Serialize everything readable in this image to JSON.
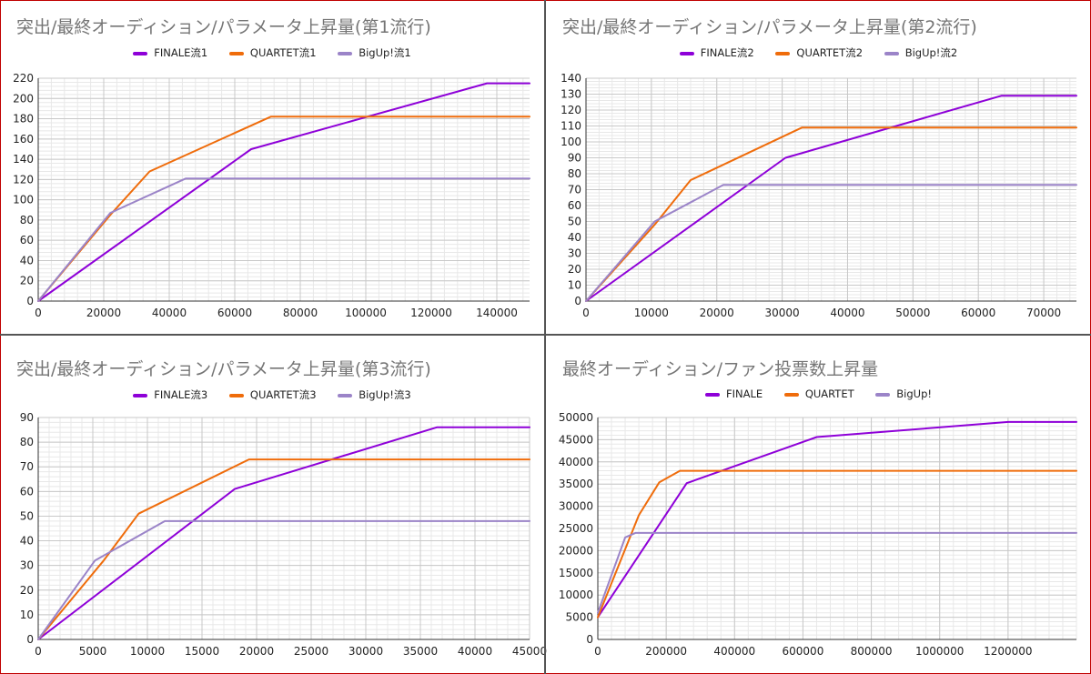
{
  "colors": {
    "finale": "#8e00d8",
    "quartet": "#ef6c0b",
    "bigup": "#9b84c8",
    "frame": "#c00000"
  },
  "chart_data": [
    {
      "type": "line",
      "title": "突出/最終オーディション/パラメータ上昇量(第1流行)",
      "xlim": [
        0,
        150000
      ],
      "ylim": [
        0,
        220
      ],
      "xticks": [
        0,
        20000,
        40000,
        60000,
        80000,
        100000,
        120000,
        140000
      ],
      "yticks": [
        0,
        20,
        40,
        60,
        80,
        100,
        120,
        140,
        160,
        180,
        200,
        220
      ],
      "grid": true,
      "legend": "top",
      "series": [
        {
          "name": "FINALE流1",
          "color": "finale",
          "points": [
            [
              0,
              0
            ],
            [
              65000,
              150
            ],
            [
              137000,
              215
            ],
            [
              150000,
              215
            ]
          ]
        },
        {
          "name": "QUARTET流1",
          "color": "quartet",
          "points": [
            [
              0,
              0
            ],
            [
              22000,
              85
            ],
            [
              34000,
              128
            ],
            [
              71000,
              182
            ],
            [
              150000,
              182
            ]
          ]
        },
        {
          "name": "BigUp!流1",
          "color": "bigup",
          "points": [
            [
              0,
              0
            ],
            [
              22000,
              87
            ],
            [
              45000,
              121
            ],
            [
              150000,
              121
            ]
          ]
        }
      ]
    },
    {
      "type": "line",
      "title": "突出/最終オーディション/パラメータ上昇量(第2流行)",
      "xlim": [
        0,
        75000
      ],
      "ylim": [
        0,
        140
      ],
      "xticks": [
        0,
        10000,
        20000,
        30000,
        40000,
        50000,
        60000,
        70000
      ],
      "yticks": [
        0,
        10,
        20,
        30,
        40,
        50,
        60,
        70,
        80,
        90,
        100,
        110,
        120,
        130,
        140
      ],
      "grid": true,
      "legend": "top",
      "series": [
        {
          "name": "FINALE流2",
          "color": "finale",
          "points": [
            [
              0,
              0
            ],
            [
              30500,
              90
            ],
            [
              63500,
              129
            ],
            [
              75000,
              129
            ]
          ]
        },
        {
          "name": "QUARTET流2",
          "color": "quartet",
          "points": [
            [
              0,
              0
            ],
            [
              10500,
              48
            ],
            [
              16000,
              76
            ],
            [
              33000,
              109
            ],
            [
              75000,
              109
            ]
          ]
        },
        {
          "name": "BigUp!流2",
          "color": "bigup",
          "points": [
            [
              0,
              0
            ],
            [
              10500,
              50
            ],
            [
              21000,
              73
            ],
            [
              75000,
              73
            ]
          ]
        }
      ]
    },
    {
      "type": "line",
      "title": "突出/最終オーディション/パラメータ上昇量(第3流行)",
      "xlim": [
        0,
        45000
      ],
      "ylim": [
        0,
        90
      ],
      "xticks": [
        0,
        5000,
        10000,
        15000,
        20000,
        25000,
        30000,
        35000,
        40000,
        45000
      ],
      "yticks": [
        0,
        10,
        20,
        30,
        40,
        50,
        60,
        70,
        80,
        90
      ],
      "grid": true,
      "legend": "top",
      "series": [
        {
          "name": "FINALE流3",
          "color": "finale",
          "points": [
            [
              0,
              0
            ],
            [
              18000,
              61
            ],
            [
              36500,
              86
            ],
            [
              45000,
              86
            ]
          ]
        },
        {
          "name": "QUARTET流3",
          "color": "quartet",
          "points": [
            [
              0,
              0
            ],
            [
              6000,
              32
            ],
            [
              9200,
              51
            ],
            [
              19300,
              73
            ],
            [
              45000,
              73
            ]
          ]
        },
        {
          "name": "BigUp!流3",
          "color": "bigup",
          "points": [
            [
              0,
              0
            ],
            [
              5200,
              32
            ],
            [
              11600,
              48
            ],
            [
              45000,
              48
            ]
          ]
        }
      ]
    },
    {
      "type": "line",
      "title": "最終オーディション/ファン投票数上昇量",
      "xlim": [
        0,
        1400000
      ],
      "ylim": [
        0,
        50000
      ],
      "xticks": [
        0,
        200000,
        400000,
        600000,
        800000,
        1000000,
        1200000
      ],
      "yticks": [
        0,
        5000,
        10000,
        15000,
        20000,
        25000,
        30000,
        35000,
        40000,
        45000,
        50000
      ],
      "grid": true,
      "legend": "top",
      "series": [
        {
          "name": "FINALE",
          "color": "finale",
          "points": [
            [
              0,
              5000
            ],
            [
              260000,
              35200
            ],
            [
              640000,
              45600
            ],
            [
              1200000,
              49000
            ],
            [
              1400000,
              49000
            ]
          ]
        },
        {
          "name": "QUARTET",
          "color": "quartet",
          "points": [
            [
              0,
              5000
            ],
            [
              120000,
              28000
            ],
            [
              180000,
              35400
            ],
            [
              240000,
              38000
            ],
            [
              1400000,
              38000
            ]
          ]
        },
        {
          "name": "BigUp!",
          "color": "bigup",
          "points": [
            [
              0,
              6000
            ],
            [
              80000,
              23000
            ],
            [
              110000,
              24000
            ],
            [
              1400000,
              24000
            ]
          ]
        }
      ]
    }
  ]
}
